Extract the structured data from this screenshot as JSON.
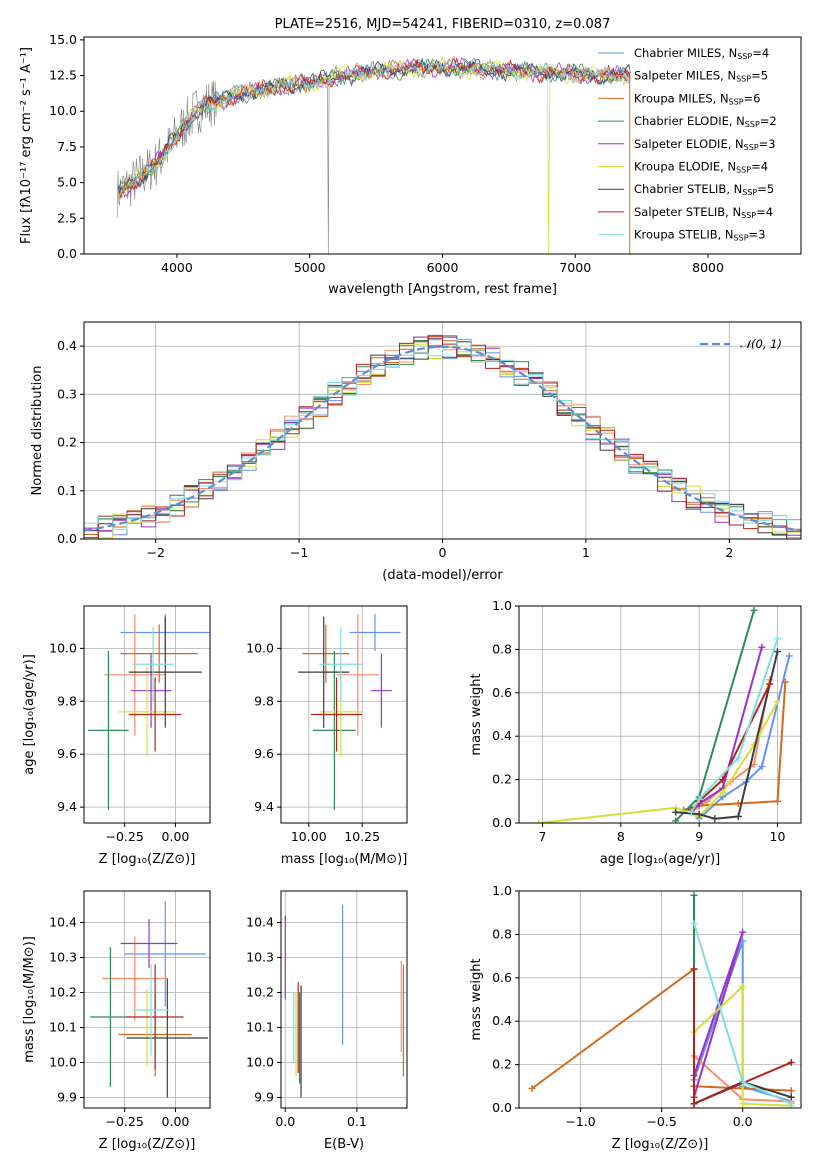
{
  "chart_data": [
    {
      "id": "spectrum",
      "type": "line",
      "title": "PLATE=2516, MJD=54241, FIBERID=0310, z=0.087",
      "xlabel": "wavelength [Angstrom, rest frame]",
      "ylabel": "Flux [fλ10⁻¹⁷ erg cm⁻² s⁻¹ A⁻¹]",
      "xlim": [
        3300,
        8700
      ],
      "ylim": [
        0,
        15.2
      ],
      "xticks": [
        "4000",
        "5000",
        "6000",
        "7000",
        "8000"
      ],
      "yticks": [
        "0.0",
        "2.5",
        "5.0",
        "7.5",
        "10.0",
        "12.5",
        "15.0"
      ],
      "legend_position": "top-right",
      "data_curve": {
        "color": "#808080",
        "x": [
          3550,
          3650,
          3750,
          3850,
          3950,
          4050,
          4150,
          4250,
          4350,
          4450,
          4600,
          4800,
          5000,
          5200,
          5400,
          5600,
          5800,
          6000,
          6200,
          6400,
          6600,
          6800,
          7000,
          7200,
          7400,
          7600,
          7800,
          8000,
          8200
        ],
        "y": [
          4.3,
          4.9,
          5.6,
          6.4,
          7.6,
          9.0,
          10.1,
          10.6,
          10.8,
          11.2,
          11.4,
          11.8,
          12.0,
          12.4,
          12.7,
          12.9,
          13.0,
          13.1,
          13.0,
          12.9,
          12.8,
          12.7,
          12.6,
          12.5,
          12.5,
          12.4,
          12.3,
          12.2,
          12.0
        ]
      },
      "series": [
        {
          "name": "Chabrier MILES, N",
          "sub": "SSP",
          "suffix": "=4",
          "color": "#6495ed"
        },
        {
          "name": "Salpeter MILES, N",
          "sub": "SSP",
          "suffix": "=5",
          "color": "#ff8c69"
        },
        {
          "name": "Kroupa MILES, N",
          "sub": "SSP",
          "suffix": "=6",
          "color": "#d2691e"
        },
        {
          "name": "Chabrier ELODIE, N",
          "sub": "SSP",
          "suffix": "=2",
          "color": "#2e8b57"
        },
        {
          "name": "Salpeter ELODIE, N",
          "sub": "SSP",
          "suffix": "=3",
          "color": "#9932cc"
        },
        {
          "name": "Kroupa ELODIE, N",
          "sub": "SSP",
          "suffix": "=4",
          "color": "#d4e03a"
        },
        {
          "name": "Chabrier STELIB, N",
          "sub": "SSP",
          "suffix": "=5",
          "color": "#3c3c3c"
        },
        {
          "name": "Salpeter STELIB, N",
          "sub": "SSP",
          "suffix": "=4",
          "color": "#b22222"
        },
        {
          "name": "Kroupa STELIB, N",
          "sub": "SSP",
          "suffix": "=3",
          "color": "#7fdfdf"
        }
      ]
    },
    {
      "id": "residuals",
      "type": "histogram",
      "xlabel": "(data-model)/error",
      "ylabel": "Normed distribution",
      "xlim": [
        -2.5,
        2.5
      ],
      "ylim": [
        0,
        0.45
      ],
      "xticks": [
        "−2",
        "−1",
        "0",
        "1",
        "2"
      ],
      "yticks": [
        "0.0",
        "0.1",
        "0.2",
        "0.3",
        "0.4"
      ],
      "grid": true,
      "legend": "𝒩(0, 1)",
      "legend_position": "top-right",
      "gaussian_color": "#5b8fd6",
      "bin_width": 0.1
    },
    {
      "id": "age_vs_Z",
      "type": "scatter",
      "xlabel": "Z [log₁₀(Z/Z⊙)]",
      "ylabel": "age  [log₁₀(age/yr)]",
      "xlim": [
        -0.45,
        0.17
      ],
      "ylim": [
        9.34,
        10.16
      ],
      "xticks": [
        {
          "v": -0.25,
          "t": "−0.25"
        },
        {
          "v": 0.0,
          "t": "0.00"
        }
      ],
      "yticks": [
        {
          "v": 9.4,
          "t": "9.4"
        },
        {
          "v": 9.6,
          "t": "9.6"
        },
        {
          "v": 9.8,
          "t": "9.8"
        },
        {
          "v": 10.0,
          "t": "10.0"
        }
      ],
      "points": [
        {
          "x": -0.05,
          "y": 10.06,
          "xerr": 0.22,
          "yerr": 0.07,
          "c": "#6495ed"
        },
        {
          "x": -0.2,
          "y": 9.9,
          "xerr": 0.15,
          "yerr": 0.23,
          "c": "#ff8c69"
        },
        {
          "x": -0.08,
          "y": 9.98,
          "xerr": 0.19,
          "yerr": 0.11,
          "c": "#d2691e"
        },
        {
          "x": -0.33,
          "y": 9.69,
          "xerr": 0.1,
          "yerr": 0.3,
          "c": "#2e8b57"
        },
        {
          "x": -0.12,
          "y": 9.84,
          "xerr": 0.1,
          "yerr": 0.14,
          "c": "#9932cc"
        },
        {
          "x": -0.14,
          "y": 9.76,
          "xerr": 0.14,
          "yerr": 0.17,
          "c": "#d4e03a"
        },
        {
          "x": -0.05,
          "y": 9.91,
          "xerr": 0.18,
          "yerr": 0.21,
          "c": "#3c3c3c"
        },
        {
          "x": -0.1,
          "y": 9.75,
          "xerr": 0.13,
          "yerr": 0.14,
          "c": "#b22222"
        },
        {
          "x": -0.11,
          "y": 9.94,
          "xerr": 0.1,
          "yerr": 0.14,
          "c": "#7fdfdf"
        }
      ]
    },
    {
      "id": "age_vs_mass",
      "type": "scatter",
      "xlabel": "mass [log₁₀(M/M⊙)]",
      "ylabel": "",
      "xlim": [
        9.87,
        10.46
      ],
      "ylim": [
        9.34,
        10.16
      ],
      "xticks": [
        {
          "v": 10.0,
          "t": "10.00"
        },
        {
          "v": 10.25,
          "t": "10.25"
        }
      ],
      "yticks": [
        {
          "v": 9.4,
          "t": "9.4"
        },
        {
          "v": 9.6,
          "t": "9.6"
        },
        {
          "v": 9.8,
          "t": "9.8"
        },
        {
          "v": 10.0,
          "t": "10.0"
        }
      ],
      "points": [
        {
          "x": 10.31,
          "y": 10.06,
          "xerr": 0.12,
          "yerr": 0.07,
          "c": "#6495ed"
        },
        {
          "x": 10.23,
          "y": 9.9,
          "xerr": 0.1,
          "yerr": 0.23,
          "c": "#ff8c69"
        },
        {
          "x": 10.08,
          "y": 9.98,
          "xerr": 0.11,
          "yerr": 0.11,
          "c": "#d2691e"
        },
        {
          "x": 10.12,
          "y": 9.69,
          "xerr": 0.1,
          "yerr": 0.3,
          "c": "#2e8b57"
        },
        {
          "x": 10.34,
          "y": 9.84,
          "xerr": 0.05,
          "yerr": 0.14,
          "c": "#9932cc"
        },
        {
          "x": 10.15,
          "y": 9.76,
          "xerr": 0.1,
          "yerr": 0.17,
          "c": "#d4e03a"
        },
        {
          "x": 10.07,
          "y": 9.91,
          "xerr": 0.12,
          "yerr": 0.21,
          "c": "#3c3c3c"
        },
        {
          "x": 10.13,
          "y": 9.75,
          "xerr": 0.12,
          "yerr": 0.14,
          "c": "#b22222"
        },
        {
          "x": 10.15,
          "y": 9.94,
          "xerr": 0.1,
          "yerr": 0.14,
          "c": "#7fdfdf"
        }
      ]
    },
    {
      "id": "weight_vs_age",
      "type": "line",
      "xlabel": "age  [log₁₀(age/yr)]",
      "ylabel": "mass weight",
      "xlim": [
        6.7,
        10.3
      ],
      "ylim": [
        0,
        1.0
      ],
      "xticks": [
        {
          "v": 7,
          "t": "7"
        },
        {
          "v": 8,
          "t": "8"
        },
        {
          "v": 9,
          "t": "9"
        },
        {
          "v": 10,
          "t": "10"
        }
      ],
      "yticks": [
        {
          "v": 0,
          "t": "0.0"
        },
        {
          "v": 0.2,
          "t": "0.2"
        },
        {
          "v": 0.4,
          "t": "0.4"
        },
        {
          "v": 0.6,
          "t": "0.6"
        },
        {
          "v": 0.8,
          "t": "0.8"
        },
        {
          "v": 1.0,
          "t": "1.0"
        }
      ],
      "series": [
        {
          "c": "#6495ed",
          "x": [
            8.9,
            9.0,
            9.3,
            9.6,
            9.8,
            10.15
          ],
          "y": [
            0.05,
            0.02,
            0.12,
            0.19,
            0.26,
            0.77
          ]
        },
        {
          "c": "#ff8c69",
          "x": [
            8.9,
            9.1,
            9.4,
            9.7,
            9.9
          ],
          "y": [
            0.05,
            0.1,
            0.19,
            0.27,
            0.66
          ]
        },
        {
          "c": "#d2691e",
          "x": [
            8.8,
            9.0,
            9.5,
            10.0,
            10.1
          ],
          "y": [
            0.06,
            0.08,
            0.09,
            0.1,
            0.65
          ]
        },
        {
          "c": "#2e8b57",
          "x": [
            8.7,
            9.0,
            9.7
          ],
          "y": [
            0.01,
            0.12,
            0.98
          ]
        },
        {
          "c": "#9932cc",
          "x": [
            8.9,
            9.0,
            9.3,
            9.8
          ],
          "y": [
            0.05,
            0.09,
            0.16,
            0.81
          ]
        },
        {
          "c": "#d4e03a",
          "x": [
            6.95,
            8.7,
            9.0,
            9.3,
            9.7,
            10.0
          ],
          "y": [
            0.0,
            0.07,
            0.03,
            0.14,
            0.36,
            0.56
          ]
        },
        {
          "c": "#3c3c3c",
          "x": [
            8.7,
            9.0,
            9.2,
            9.5,
            10.0
          ],
          "y": [
            0.05,
            0.04,
            0.02,
            0.03,
            0.79
          ]
        },
        {
          "c": "#b22222",
          "x": [
            8.9,
            9.0,
            9.3,
            9.9
          ],
          "y": [
            0.06,
            0.1,
            0.2,
            0.64
          ]
        },
        {
          "c": "#7fdfdf",
          "x": [
            8.9,
            9.0,
            9.5,
            10.0
          ],
          "y": [
            0.05,
            0.11,
            0.3,
            0.85
          ]
        }
      ]
    },
    {
      "id": "mass_vs_Z",
      "type": "scatter",
      "xlabel": "Z [log₁₀(Z/Z⊙)]",
      "ylabel": "mass [log₁₀(M/M⊙)]",
      "xlim": [
        -0.45,
        0.17
      ],
      "ylim": [
        9.87,
        10.49
      ],
      "xticks": [
        {
          "v": -0.25,
          "t": "−0.25"
        },
        {
          "v": 0.0,
          "t": "0.00"
        }
      ],
      "yticks": [
        {
          "v": 9.9,
          "t": "9.9"
        },
        {
          "v": 10.0,
          "t": "10.0"
        },
        {
          "v": 10.1,
          "t": "10.1"
        },
        {
          "v": 10.2,
          "t": "10.2"
        },
        {
          "v": 10.3,
          "t": "10.3"
        },
        {
          "v": 10.4,
          "t": "10.4"
        }
      ],
      "points": [
        {
          "x": -0.05,
          "y": 10.31,
          "xerr": 0.2,
          "yerr": 0.15,
          "c": "#6495ed"
        },
        {
          "x": -0.2,
          "y": 10.24,
          "xerr": 0.16,
          "yerr": 0.12,
          "c": "#ff8c69"
        },
        {
          "x": -0.1,
          "y": 10.08,
          "xerr": 0.18,
          "yerr": 0.12,
          "c": "#d2691e"
        },
        {
          "x": -0.32,
          "y": 10.13,
          "xerr": 0.1,
          "yerr": 0.2,
          "c": "#2e8b57"
        },
        {
          "x": -0.13,
          "y": 10.34,
          "xerr": 0.14,
          "yerr": 0.07,
          "c": "#9932cc"
        },
        {
          "x": -0.14,
          "y": 10.1,
          "xerr": 0.11,
          "yerr": 0.11,
          "c": "#d4e03a"
        },
        {
          "x": -0.04,
          "y": 10.07,
          "xerr": 0.2,
          "yerr": 0.17,
          "c": "#3c3c3c"
        },
        {
          "x": -0.1,
          "y": 10.13,
          "xerr": 0.14,
          "yerr": 0.15,
          "c": "#b22222"
        },
        {
          "x": -0.12,
          "y": 10.15,
          "xerr": 0.09,
          "yerr": 0.13,
          "c": "#7fdfdf"
        }
      ]
    },
    {
      "id": "mass_vs_ebv",
      "type": "scatter",
      "xlabel": "E(B-V)",
      "ylabel": "",
      "xlim": [
        -0.006,
        0.17
      ],
      "ylim": [
        9.87,
        10.49
      ],
      "xticks": [
        {
          "v": 0.0,
          "t": "0.0"
        },
        {
          "v": 0.1,
          "t": "0.1"
        }
      ],
      "yticks": [
        {
          "v": 9.9,
          "t": "9.9"
        },
        {
          "v": 10.0,
          "t": "10.0"
        },
        {
          "v": 10.1,
          "t": "10.1"
        },
        {
          "v": 10.2,
          "t": "10.2"
        },
        {
          "v": 10.3,
          "t": "10.3"
        },
        {
          "v": 10.4,
          "t": "10.4"
        }
      ],
      "points": [
        {
          "x": 0.08,
          "y": 10.25,
          "xerr": 0,
          "yerr": 0.2,
          "c": "#6495ed"
        },
        {
          "x": 0.162,
          "y": 10.16,
          "xerr": 0,
          "yerr": 0.13,
          "c": "#ff8c69"
        },
        {
          "x": 0.165,
          "y": 10.12,
          "xerr": 0,
          "yerr": 0.16,
          "c": "#d2691e"
        },
        {
          "x": 0.02,
          "y": 10.07,
          "xerr": 0,
          "yerr": 0.13,
          "c": "#2e8b57"
        },
        {
          "x": 0.0,
          "y": 10.3,
          "xerr": 0,
          "yerr": 0.12,
          "c": "#9932cc"
        },
        {
          "x": 0.015,
          "y": 10.08,
          "xerr": 0,
          "yerr": 0.12,
          "c": "#d4e03a"
        },
        {
          "x": 0.022,
          "y": 10.06,
          "xerr": 0,
          "yerr": 0.16,
          "c": "#3c3c3c"
        },
        {
          "x": 0.018,
          "y": 10.1,
          "xerr": 0,
          "yerr": 0.13,
          "c": "#b22222"
        },
        {
          "x": 0.012,
          "y": 10.1,
          "xerr": 0,
          "yerr": 0.1,
          "c": "#7fdfdf"
        }
      ]
    },
    {
      "id": "weight_vs_Z",
      "type": "line",
      "xlabel": "Z [log₁₀(Z/Z⊙)]",
      "ylabel": "mass weight",
      "xlim": [
        -1.38,
        0.36
      ],
      "ylim": [
        0,
        1.0
      ],
      "xticks": [
        {
          "v": -1.0,
          "t": "−1.0"
        },
        {
          "v": -0.5,
          "t": "−0.5"
        },
        {
          "v": 0.0,
          "t": "0.0"
        }
      ],
      "yticks": [
        {
          "v": 0,
          "t": "0.0"
        },
        {
          "v": 0.2,
          "t": "0.2"
        },
        {
          "v": 0.4,
          "t": "0.4"
        },
        {
          "v": 0.6,
          "t": "0.6"
        },
        {
          "v": 0.8,
          "t": "0.8"
        },
        {
          "v": 1.0,
          "t": "1.0"
        }
      ],
      "series": [
        {
          "c": "#6495ed",
          "x": [
            -0.3,
            0.0,
            0.0,
            0.3
          ],
          "y": [
            0.13,
            0.77,
            0.1,
            0.03
          ]
        },
        {
          "c": "#ff8c69",
          "x": [
            -0.3,
            -0.3,
            0.0,
            0.3
          ],
          "y": [
            0.05,
            0.24,
            0.04,
            0.03
          ]
        },
        {
          "c": "#d2691e",
          "x": [
            -1.3,
            -0.3,
            -0.3,
            0.3
          ],
          "y": [
            0.09,
            0.64,
            0.1,
            0.08
          ]
        },
        {
          "c": "#2e8b57",
          "x": [
            -0.3,
            -0.3
          ],
          "y": [
            0.02,
            0.98
          ]
        },
        {
          "c": "#9932cc",
          "x": [
            -0.3,
            0.0,
            -0.3
          ],
          "y": [
            0.15,
            0.81,
            0.05
          ]
        },
        {
          "c": "#d4e03a",
          "x": [
            -0.3,
            0.0,
            0.0,
            0.3
          ],
          "y": [
            0.35,
            0.56,
            0.02,
            0.01
          ]
        },
        {
          "c": "#3c3c3c",
          "x": [
            -0.3,
            0.0,
            0.3
          ],
          "y": [
            0.02,
            0.12,
            0.05
          ]
        },
        {
          "c": "#b22222",
          "x": [
            -0.3,
            -0.3,
            0.3
          ],
          "y": [
            0.64,
            0.02,
            0.21
          ]
        },
        {
          "c": "#7fdfdf",
          "x": [
            -0.3,
            0.0,
            0.3
          ],
          "y": [
            0.85,
            0.12,
            0.02
          ]
        }
      ]
    }
  ]
}
